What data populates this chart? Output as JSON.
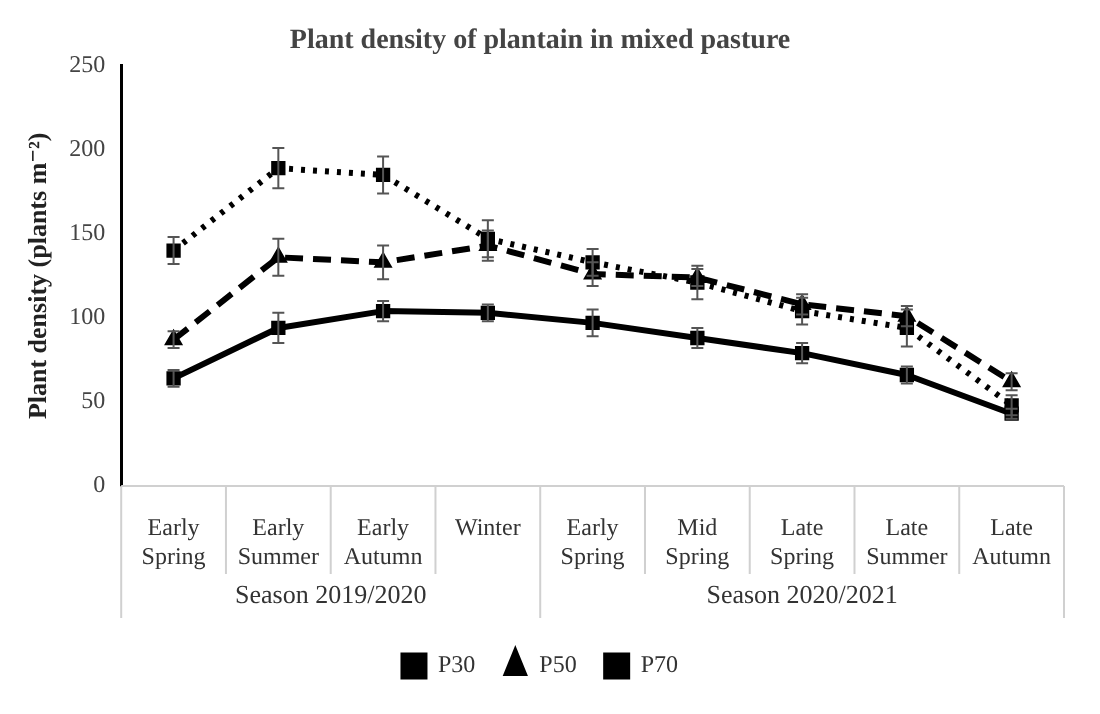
{
  "chart_data": {
    "type": "line",
    "title": "Plant density of plantain in mixed pasture",
    "ylabel": "Plant density (plants m⁻²)",
    "categories": [
      "Early Spring",
      "Early Summer",
      "Early Autumn",
      "Winter",
      "Early Spring",
      "Mid Spring",
      "Late Spring",
      "Late Summer",
      "Late Autumn"
    ],
    "series": [
      {
        "name": "P30",
        "color": "#000000",
        "marker": "square",
        "line_style": "solid",
        "values": [
          64,
          94,
          104,
          103,
          97,
          88,
          79,
          66,
          43
        ],
        "errors": [
          5,
          9,
          6,
          5,
          8,
          6,
          6,
          5,
          3
        ]
      },
      {
        "name": "P50",
        "color": "#000000",
        "marker": "triangle",
        "line_style": "dashed",
        "values": [
          87,
          136,
          133,
          143,
          126,
          124,
          108,
          101,
          62
        ],
        "errors": [
          5,
          11,
          10,
          9,
          7,
          5,
          6,
          6,
          5
        ]
      },
      {
        "name": "P70",
        "color": "#000000",
        "marker": "square",
        "line_style": "dotted",
        "values": [
          140,
          189,
          185,
          147,
          133,
          121,
          104,
          94,
          48
        ],
        "errors": [
          8,
          12,
          11,
          11,
          8,
          10,
          8,
          11,
          6
        ]
      }
    ],
    "annotations": [
      "Season 2019/2020",
      "Season 2020/2021"
    ],
    "ylim": [
      0,
      250
    ],
    "yticks": [
      0,
      50,
      100,
      150,
      200,
      250
    ],
    "grid": false,
    "legend": "bottom"
  }
}
